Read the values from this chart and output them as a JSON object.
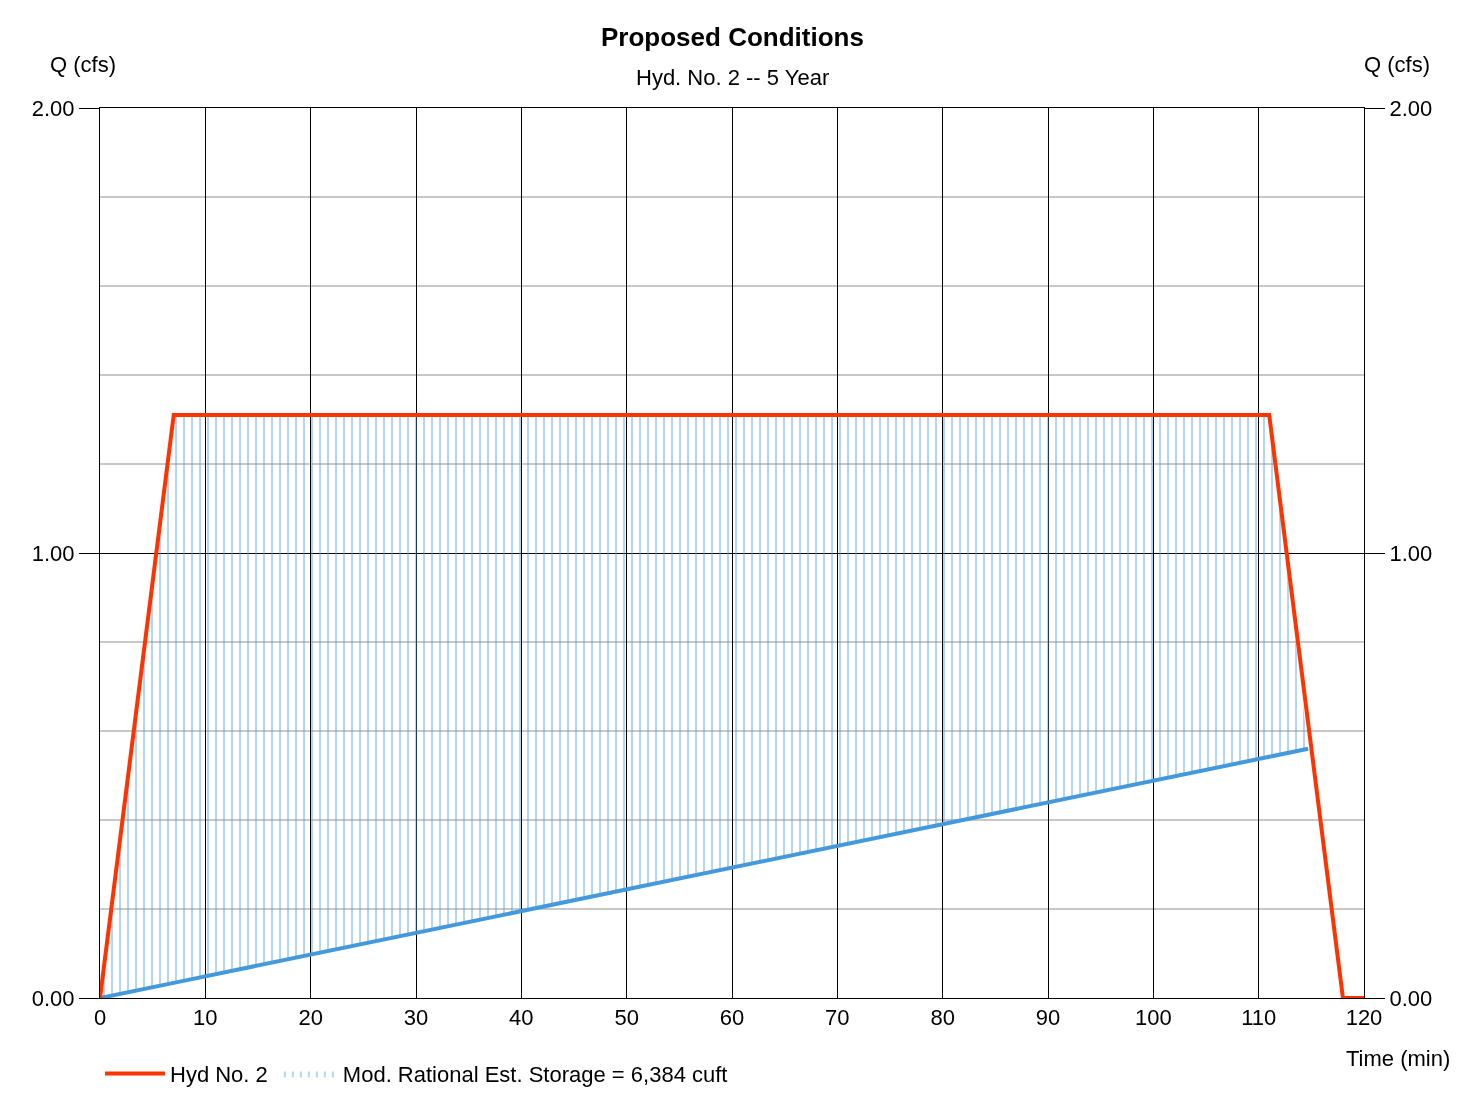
{
  "chart_data": {
    "type": "line",
    "title": "Proposed Conditions",
    "subtitle": "Hyd. No. 2 -- 5 Year",
    "xlabel": "Time (min)",
    "ylabel": "Q (cfs)",
    "y2label": "Q (cfs)",
    "xlim": [
      0,
      120
    ],
    "xticks": [
      0,
      10,
      20,
      30,
      40,
      50,
      60,
      70,
      80,
      90,
      100,
      110,
      120
    ],
    "ylim": [
      0,
      2
    ],
    "yticks": [
      {
        "value": 0,
        "label": "0.00"
      },
      {
        "value": 0.2,
        "label": null
      },
      {
        "value": 0.4,
        "label": null
      },
      {
        "value": 0.6,
        "label": null
      },
      {
        "value": 0.8,
        "label": null
      },
      {
        "value": 1,
        "label": "1.00"
      },
      {
        "value": 1.2,
        "label": null
      },
      {
        "value": 1.4,
        "label": null
      },
      {
        "value": 1.6,
        "label": null
      },
      {
        "value": 1.8,
        "label": null
      },
      {
        "value": 2,
        "label": "2.00"
      }
    ],
    "y2lim": [
      0,
      2
    ],
    "y2ticks": [
      {
        "value": 0,
        "label": "0.00"
      },
      {
        "value": 1,
        "label": "1.00"
      },
      {
        "value": 2,
        "label": "2.00"
      }
    ],
    "grid": true,
    "legend": "bottom",
    "line_style": "solid",
    "marker": "none",
    "series": [
      {
        "name": "Hyd No. 2",
        "color": "#ff3300",
        "x": [
          0,
          7,
          111,
          118,
          120
        ],
        "values": [
          0,
          1.31,
          1.31,
          0,
          0
        ]
      },
      {
        "color": "#4499dd",
        "x": [
          0,
          7,
          111,
          114.7
        ],
        "values": [
          0,
          0.034,
          0.542,
          0.56
        ]
      },
      {
        "name": "Mod. Rational Est. Storage = 6,384 cuft",
        "type": "area",
        "color": "#4499dd",
        "x": [
          0,
          7,
          111,
          114.7
        ],
        "values": [
          0,
          1.31,
          1.31,
          0.56
        ]
      }
    ]
  }
}
